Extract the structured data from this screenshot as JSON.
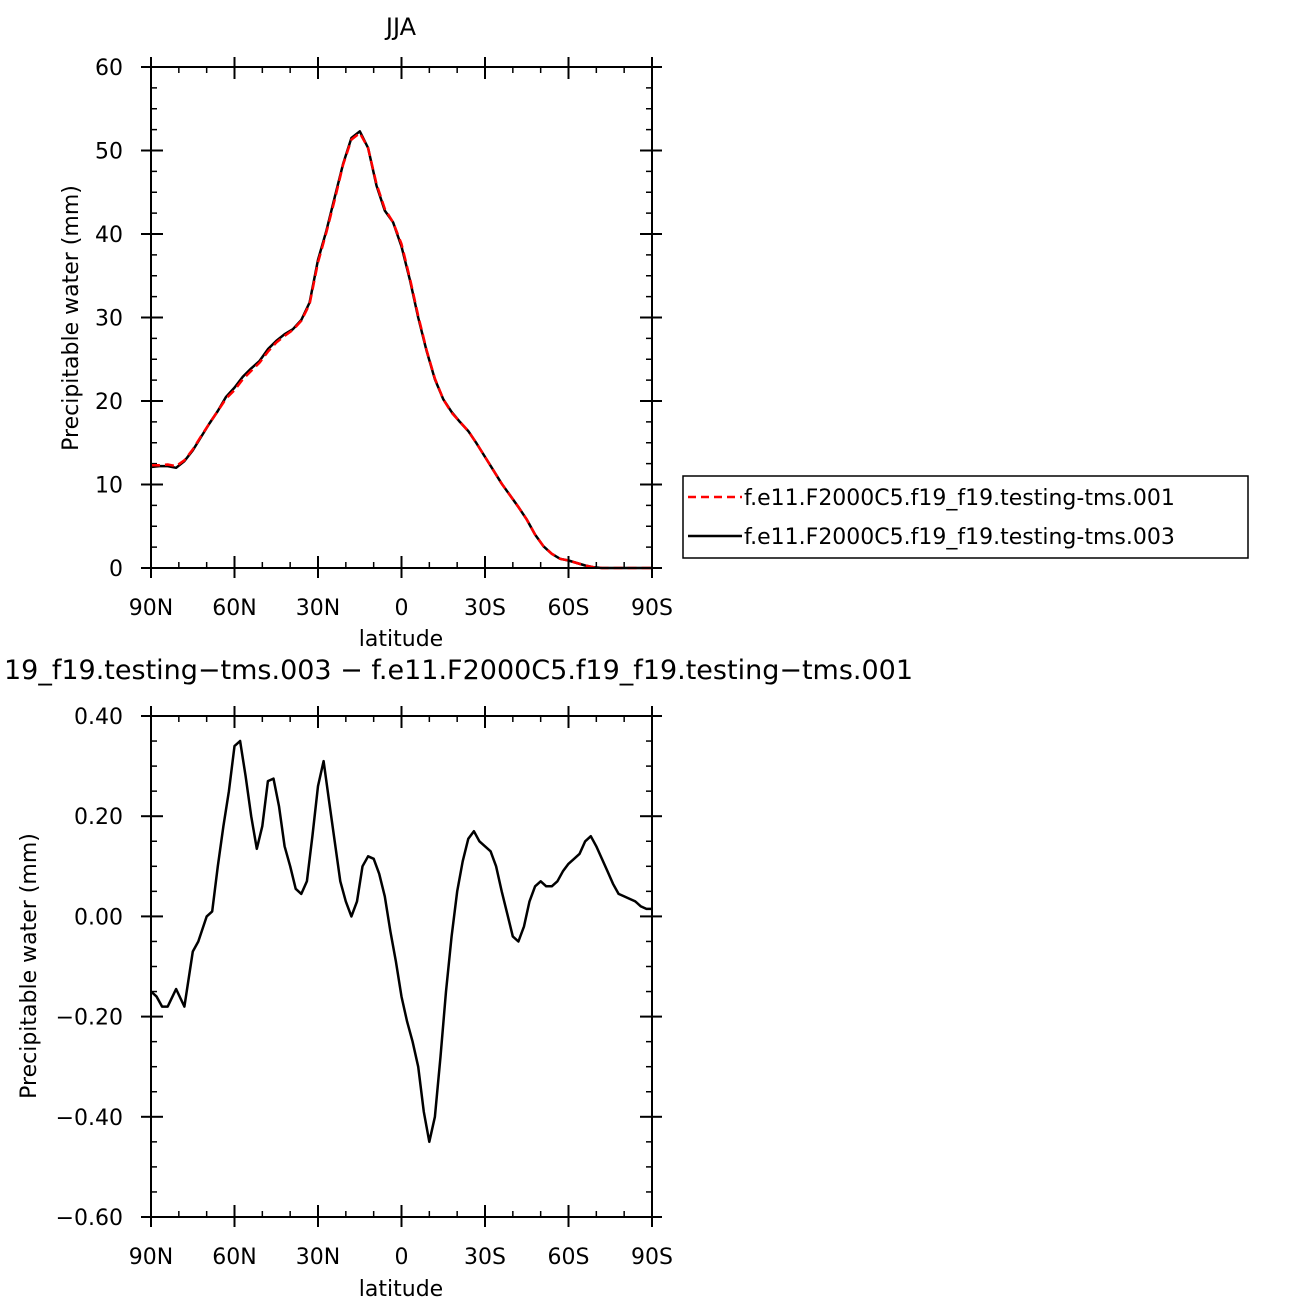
{
  "chart_data": [
    {
      "type": "line",
      "title": "JJA",
      "xlabel": "latitude",
      "ylabel": "Precipitable water (mm)",
      "xlim": [
        90,
        -90
      ],
      "ylim": [
        0,
        60
      ],
      "xticks": [
        90,
        60,
        30,
        0,
        -30,
        -60,
        -90
      ],
      "xtick_labels": [
        "90N",
        "60N",
        "30N",
        "0",
        "30S",
        "60S",
        "90S"
      ],
      "yticks": [
        0,
        10,
        20,
        30,
        40,
        50,
        60
      ],
      "ytick_labels": [
        "0",
        "10",
        "20",
        "30",
        "40",
        "50",
        "60"
      ],
      "grid": false,
      "legend": "right",
      "series": [
        {
          "name": "f.e11.F2000C5.f19_f19.testing-tms.001",
          "color": "#ff0000",
          "dash": "dashed",
          "x": [
            90,
            87,
            84,
            81,
            78,
            75,
            72,
            69,
            66,
            63,
            60,
            57,
            54,
            51,
            48,
            45,
            42,
            39,
            36,
            33,
            30,
            27,
            24,
            21,
            18,
            15,
            12,
            9,
            6,
            3,
            0,
            -3,
            -6,
            -9,
            -12,
            -15,
            -18,
            -21,
            -24,
            -27,
            -30,
            -33,
            -36,
            -39,
            -42,
            -45,
            -48,
            -51,
            -54,
            -57,
            -60,
            -63,
            -66,
            -69,
            -72,
            -75,
            -78,
            -81,
            -84,
            -87,
            -90
          ],
          "y": [
            12.3,
            12.3,
            12.4,
            12.2,
            12.9,
            14.2,
            15.8,
            17.3,
            18.8,
            20.3,
            21.3,
            22.6,
            23.6,
            24.6,
            25.9,
            27.0,
            27.8,
            28.5,
            29.6,
            31.6,
            36.6,
            40.2,
            44.1,
            48.3,
            51.3,
            52.1,
            50.3,
            46.0,
            43.0,
            41.4,
            38.8,
            34.7,
            30.2,
            26.1,
            22.7,
            20.2,
            18.6,
            17.5,
            16.4,
            14.9,
            13.3,
            11.7,
            10.1,
            8.7,
            7.3,
            5.8,
            4.0,
            2.6,
            1.7,
            1.1,
            0.9,
            0.6,
            0.3,
            0.1,
            0.0,
            0.0,
            0.0,
            0.0,
            0.0,
            0.0,
            0.0
          ]
        },
        {
          "name": "f.e11.F2000C5.f19_f19.testing-tms.003",
          "color": "#000000",
          "dash": "solid",
          "x": [
            90,
            87,
            84,
            81,
            78,
            75,
            72,
            69,
            66,
            63,
            60,
            57,
            54,
            51,
            48,
            45,
            42,
            39,
            36,
            33,
            30,
            27,
            24,
            21,
            18,
            15,
            12,
            9,
            6,
            3,
            0,
            -3,
            -6,
            -9,
            -12,
            -15,
            -18,
            -21,
            -24,
            -27,
            -30,
            -33,
            -36,
            -39,
            -42,
            -45,
            -48,
            -51,
            -54,
            -57,
            -60,
            -63,
            -66,
            -69,
            -72,
            -75,
            -78,
            -81,
            -84,
            -87,
            -90
          ],
          "y": [
            12.1,
            12.2,
            12.2,
            12.0,
            12.8,
            14.1,
            15.7,
            17.3,
            18.8,
            20.5,
            21.6,
            22.9,
            23.9,
            24.8,
            26.2,
            27.2,
            28.0,
            28.6,
            29.7,
            31.8,
            36.9,
            40.4,
            44.4,
            48.4,
            51.5,
            52.3,
            50.3,
            45.8,
            42.8,
            41.4,
            38.5,
            34.5,
            30.0,
            26.0,
            22.6,
            20.2,
            18.7,
            17.5,
            16.4,
            14.9,
            13.3,
            11.7,
            10.1,
            8.7,
            7.3,
            5.8,
            4.0,
            2.6,
            1.7,
            1.1,
            0.9,
            0.6,
            0.3,
            0.1,
            0.0,
            0.0,
            0.0,
            0.0,
            0.0,
            0.0,
            0.0
          ]
        }
      ]
    },
    {
      "type": "line",
      "title": "19_f19.testing−tms.003 − f.e11.F2000C5.f19_f19.testing−tms.001",
      "xlabel": "latitude",
      "ylabel": "Precipitable water (mm)",
      "xlim": [
        90,
        -90
      ],
      "ylim": [
        -0.6,
        0.4
      ],
      "xticks": [
        90,
        60,
        30,
        0,
        -30,
        -60,
        -90
      ],
      "xtick_labels": [
        "90N",
        "60N",
        "30N",
        "0",
        "30S",
        "60S",
        "90S"
      ],
      "yticks": [
        -0.6,
        -0.4,
        -0.2,
        0.0,
        0.2,
        0.4
      ],
      "ytick_labels": [
        "−0.60",
        "−0.40",
        "−0.20",
        "0.00",
        "0.20",
        "0.40"
      ],
      "grid": false,
      "series": [
        {
          "color": "#000000",
          "dash": "solid",
          "x": [
            90,
            88,
            86,
            84,
            81,
            78,
            75,
            73,
            70,
            68,
            66,
            64,
            62,
            60,
            58,
            56,
            54,
            52,
            50,
            48,
            46,
            44,
            42,
            40,
            38,
            36,
            34,
            32,
            30,
            28,
            26,
            24,
            22,
            20,
            18,
            16,
            14,
            12,
            10,
            8,
            6,
            4,
            2,
            0,
            -2,
            -4,
            -6,
            -8,
            -10,
            -12,
            -14,
            -16,
            -18,
            -20,
            -22,
            -24,
            -26,
            -28,
            -30,
            -32,
            -34,
            -36,
            -38,
            -40,
            -42,
            -44,
            -46,
            -48,
            -50,
            -52,
            -54,
            -56,
            -58,
            -60,
            -62,
            -64,
            -66,
            -68,
            -70,
            -72,
            -74,
            -76,
            -78,
            -80,
            -82,
            -84,
            -86,
            -88,
            -90
          ],
          "y": [
            -0.15,
            -0.16,
            -0.18,
            -0.18,
            -0.145,
            -0.18,
            -0.07,
            -0.05,
            0.0,
            0.01,
            0.1,
            0.18,
            0.25,
            0.34,
            0.35,
            0.28,
            0.2,
            0.135,
            0.18,
            0.27,
            0.275,
            0.22,
            0.14,
            0.1,
            0.055,
            0.045,
            0.07,
            0.16,
            0.26,
            0.31,
            0.23,
            0.15,
            0.07,
            0.03,
            0.0,
            0.03,
            0.1,
            0.12,
            0.115,
            0.085,
            0.04,
            -0.03,
            -0.09,
            -0.16,
            -0.21,
            -0.25,
            -0.3,
            -0.39,
            -0.45,
            -0.4,
            -0.28,
            -0.15,
            -0.04,
            0.05,
            0.11,
            0.155,
            0.17,
            0.15,
            0.14,
            0.13,
            0.1,
            0.05,
            0.005,
            -0.04,
            -0.05,
            -0.02,
            0.03,
            0.06,
            0.07,
            0.06,
            0.06,
            0.07,
            0.09,
            0.105,
            0.115,
            0.125,
            0.15,
            0.16,
            0.14,
            0.115,
            0.09,
            0.065,
            0.045,
            0.04,
            0.035,
            0.03,
            0.02,
            0.015,
            0.015
          ]
        }
      ]
    }
  ]
}
